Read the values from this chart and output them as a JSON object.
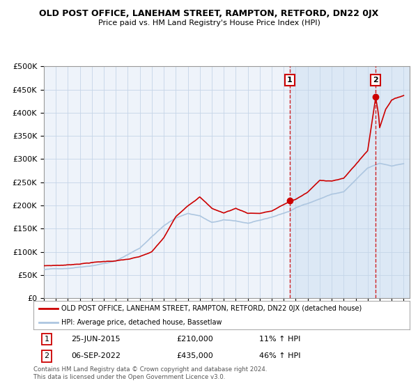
{
  "title": "OLD POST OFFICE, LANEHAM STREET, RAMPTON, RETFORD, DN22 0JX",
  "subtitle": "Price paid vs. HM Land Registry's House Price Index (HPI)",
  "ylabel_ticks": [
    "£0",
    "£50K",
    "£100K",
    "£150K",
    "£200K",
    "£250K",
    "£300K",
    "£350K",
    "£400K",
    "£450K",
    "£500K"
  ],
  "ytick_values": [
    0,
    50000,
    100000,
    150000,
    200000,
    250000,
    300000,
    350000,
    400000,
    450000,
    500000
  ],
  "year_start": 1995,
  "year_end": 2025,
  "sale1_date": 2015.5,
  "sale1_price": 210000,
  "sale1_label": "1",
  "sale1_text": "25-JUN-2015",
  "sale1_amount": "£210,000",
  "sale1_hpi": "11% ↑ HPI",
  "sale2_date": 2022.67,
  "sale2_price": 435000,
  "sale2_label": "2",
  "sale2_text": "06-SEP-2022",
  "sale2_amount": "£435,000",
  "sale2_hpi": "46% ↑ HPI",
  "hpi_color": "#adc6e0",
  "price_color": "#cc0000",
  "plot_bg": "#eef3fa",
  "shaded_bg": "#dce8f5",
  "grid_color": "#c5d5e8",
  "legend_line1": "OLD POST OFFICE, LANEHAM STREET, RAMPTON, RETFORD, DN22 0JX (detached house)",
  "legend_line2": "HPI: Average price, detached house, Bassetlaw",
  "footer": "Contains HM Land Registry data © Crown copyright and database right 2024.\nThis data is licensed under the Open Government Licence v3.0."
}
